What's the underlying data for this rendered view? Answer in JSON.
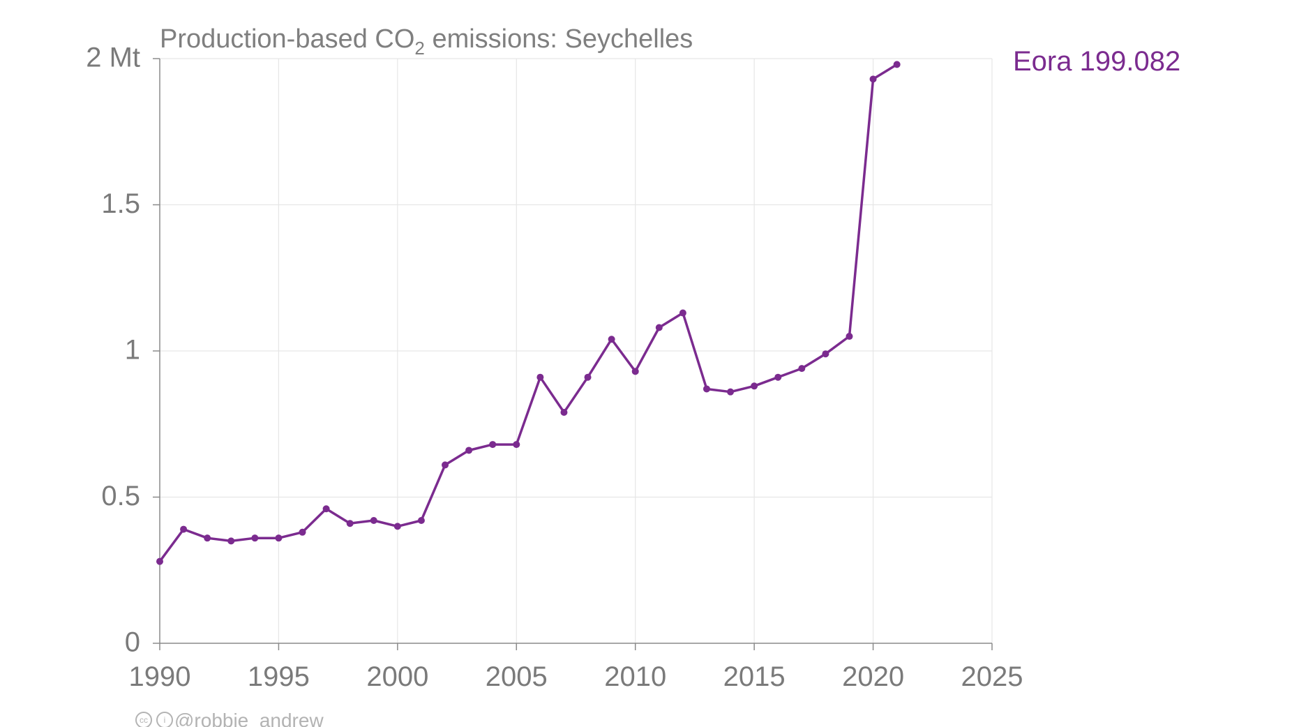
{
  "chart_data": {
    "type": "line",
    "title_parts": [
      "Production-based CO",
      "2",
      " emissions: Seychelles"
    ],
    "xlabel": "",
    "ylabel": "",
    "xlim": [
      1990,
      2025
    ],
    "ylim": [
      0,
      2
    ],
    "x_ticks": [
      1990,
      1995,
      2000,
      2005,
      2010,
      2015,
      2020,
      2025
    ],
    "y_ticks": [
      {
        "value": 0,
        "label": "0"
      },
      {
        "value": 0.5,
        "label": "0.5"
      },
      {
        "value": 1,
        "label": "1"
      },
      {
        "value": 1.5,
        "label": "1.5"
      },
      {
        "value": 2,
        "label": "2 Mt"
      }
    ],
    "grid": true,
    "legend_position": "top-right",
    "series": [
      {
        "name": "Eora 199.082",
        "color": "#7b2b8f",
        "x": [
          1990,
          1991,
          1992,
          1993,
          1994,
          1995,
          1996,
          1997,
          1998,
          1999,
          2000,
          2001,
          2002,
          2003,
          2004,
          2005,
          2006,
          2007,
          2008,
          2009,
          2010,
          2011,
          2012,
          2013,
          2014,
          2015,
          2016,
          2017,
          2018,
          2019,
          2020,
          2021
        ],
        "y": [
          0.28,
          0.39,
          0.36,
          0.35,
          0.36,
          0.36,
          0.38,
          0.46,
          0.41,
          0.42,
          0.4,
          0.42,
          0.61,
          0.66,
          0.68,
          0.68,
          0.91,
          0.79,
          0.91,
          1.04,
          0.93,
          1.08,
          1.13,
          0.87,
          0.86,
          0.88,
          0.91,
          0.94,
          0.99,
          1.05,
          1.93,
          1.98
        ]
      }
    ]
  },
  "credit": {
    "icon": "creative-commons-by-icon",
    "cc_glyph": "cc",
    "by_glyph": "i",
    "text": "@robbie_andrew"
  }
}
